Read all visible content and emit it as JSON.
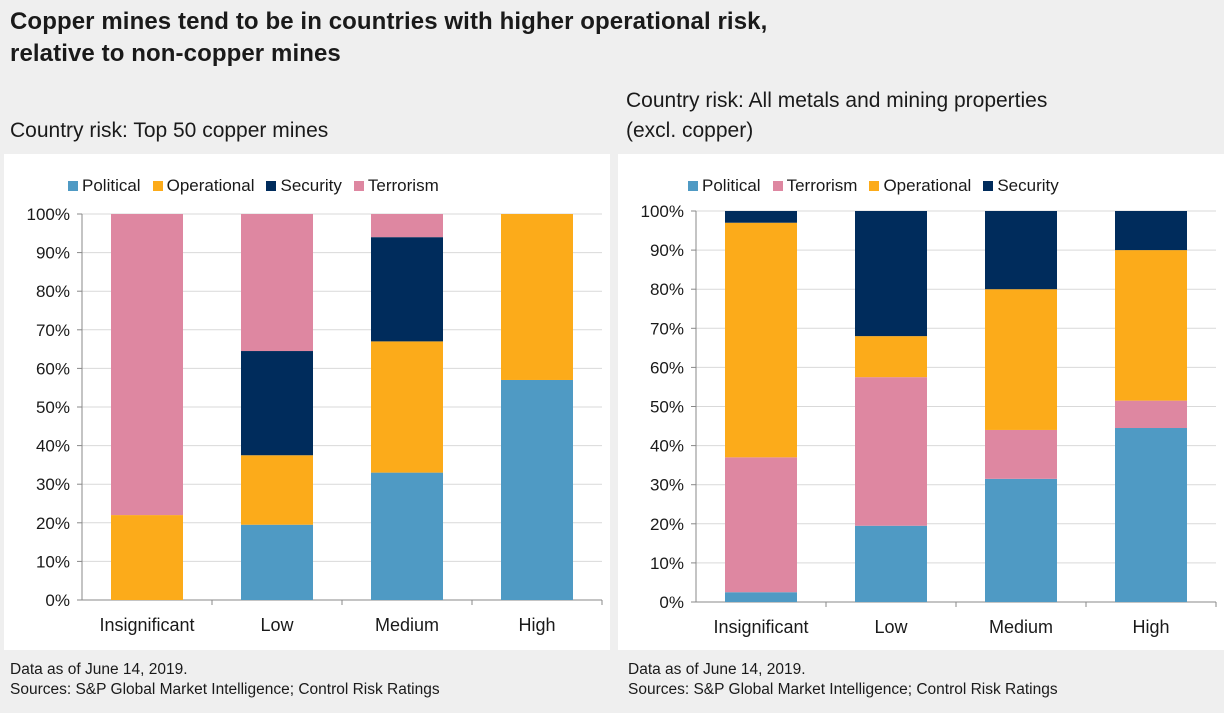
{
  "header": {
    "title_line1": "Copper mines tend to be in countries with higher operational risk,",
    "title_line2": "relative to non-copper mines"
  },
  "colors": {
    "Political": "#4f9ac4",
    "Operational": "#fcab1a",
    "Security": "#002c5c",
    "Terrorism": "#de87a1"
  },
  "footnotes": {
    "date": "Data as of June 14, 2019.",
    "sources": "Sources: S&P Global Market Intelligence; Control Risk Ratings"
  },
  "chart_data": [
    {
      "type": "bar",
      "stacked": true,
      "subtitle": "Country risk: Top 50 copper mines",
      "categories": [
        "Insignificant",
        "Low",
        "Medium",
        "High"
      ],
      "yticks": [
        "0%",
        "10%",
        "20%",
        "30%",
        "40%",
        "50%",
        "60%",
        "70%",
        "80%",
        "90%",
        "100%"
      ],
      "ylim": [
        0,
        100
      ],
      "legend_position": "top",
      "series": [
        {
          "name": "Political",
          "values": [
            0,
            19.5,
            33,
            57
          ]
        },
        {
          "name": "Operational",
          "values": [
            22,
            18,
            34,
            43
          ]
        },
        {
          "name": "Security",
          "values": [
            0,
            27,
            27,
            0
          ]
        },
        {
          "name": "Terrorism",
          "values": [
            78,
            35.5,
            6,
            0
          ]
        }
      ]
    },
    {
      "type": "bar",
      "stacked": true,
      "subtitle": "Country risk: All metals and mining properties\n(excl. copper)",
      "categories": [
        "Insignificant",
        "Low",
        "Medium",
        "High"
      ],
      "yticks": [
        "0%",
        "10%",
        "20%",
        "30%",
        "40%",
        "50%",
        "60%",
        "70%",
        "80%",
        "90%",
        "100%"
      ],
      "ylim": [
        0,
        100
      ],
      "legend_position": "top",
      "series": [
        {
          "name": "Political",
          "values": [
            2.5,
            19.5,
            31.5,
            44.5
          ]
        },
        {
          "name": "Terrorism",
          "values": [
            34.5,
            38,
            12.5,
            7
          ]
        },
        {
          "name": "Operational",
          "values": [
            60,
            10.5,
            36,
            38.5
          ]
        },
        {
          "name": "Security",
          "values": [
            3,
            32,
            20,
            10
          ]
        }
      ]
    }
  ]
}
